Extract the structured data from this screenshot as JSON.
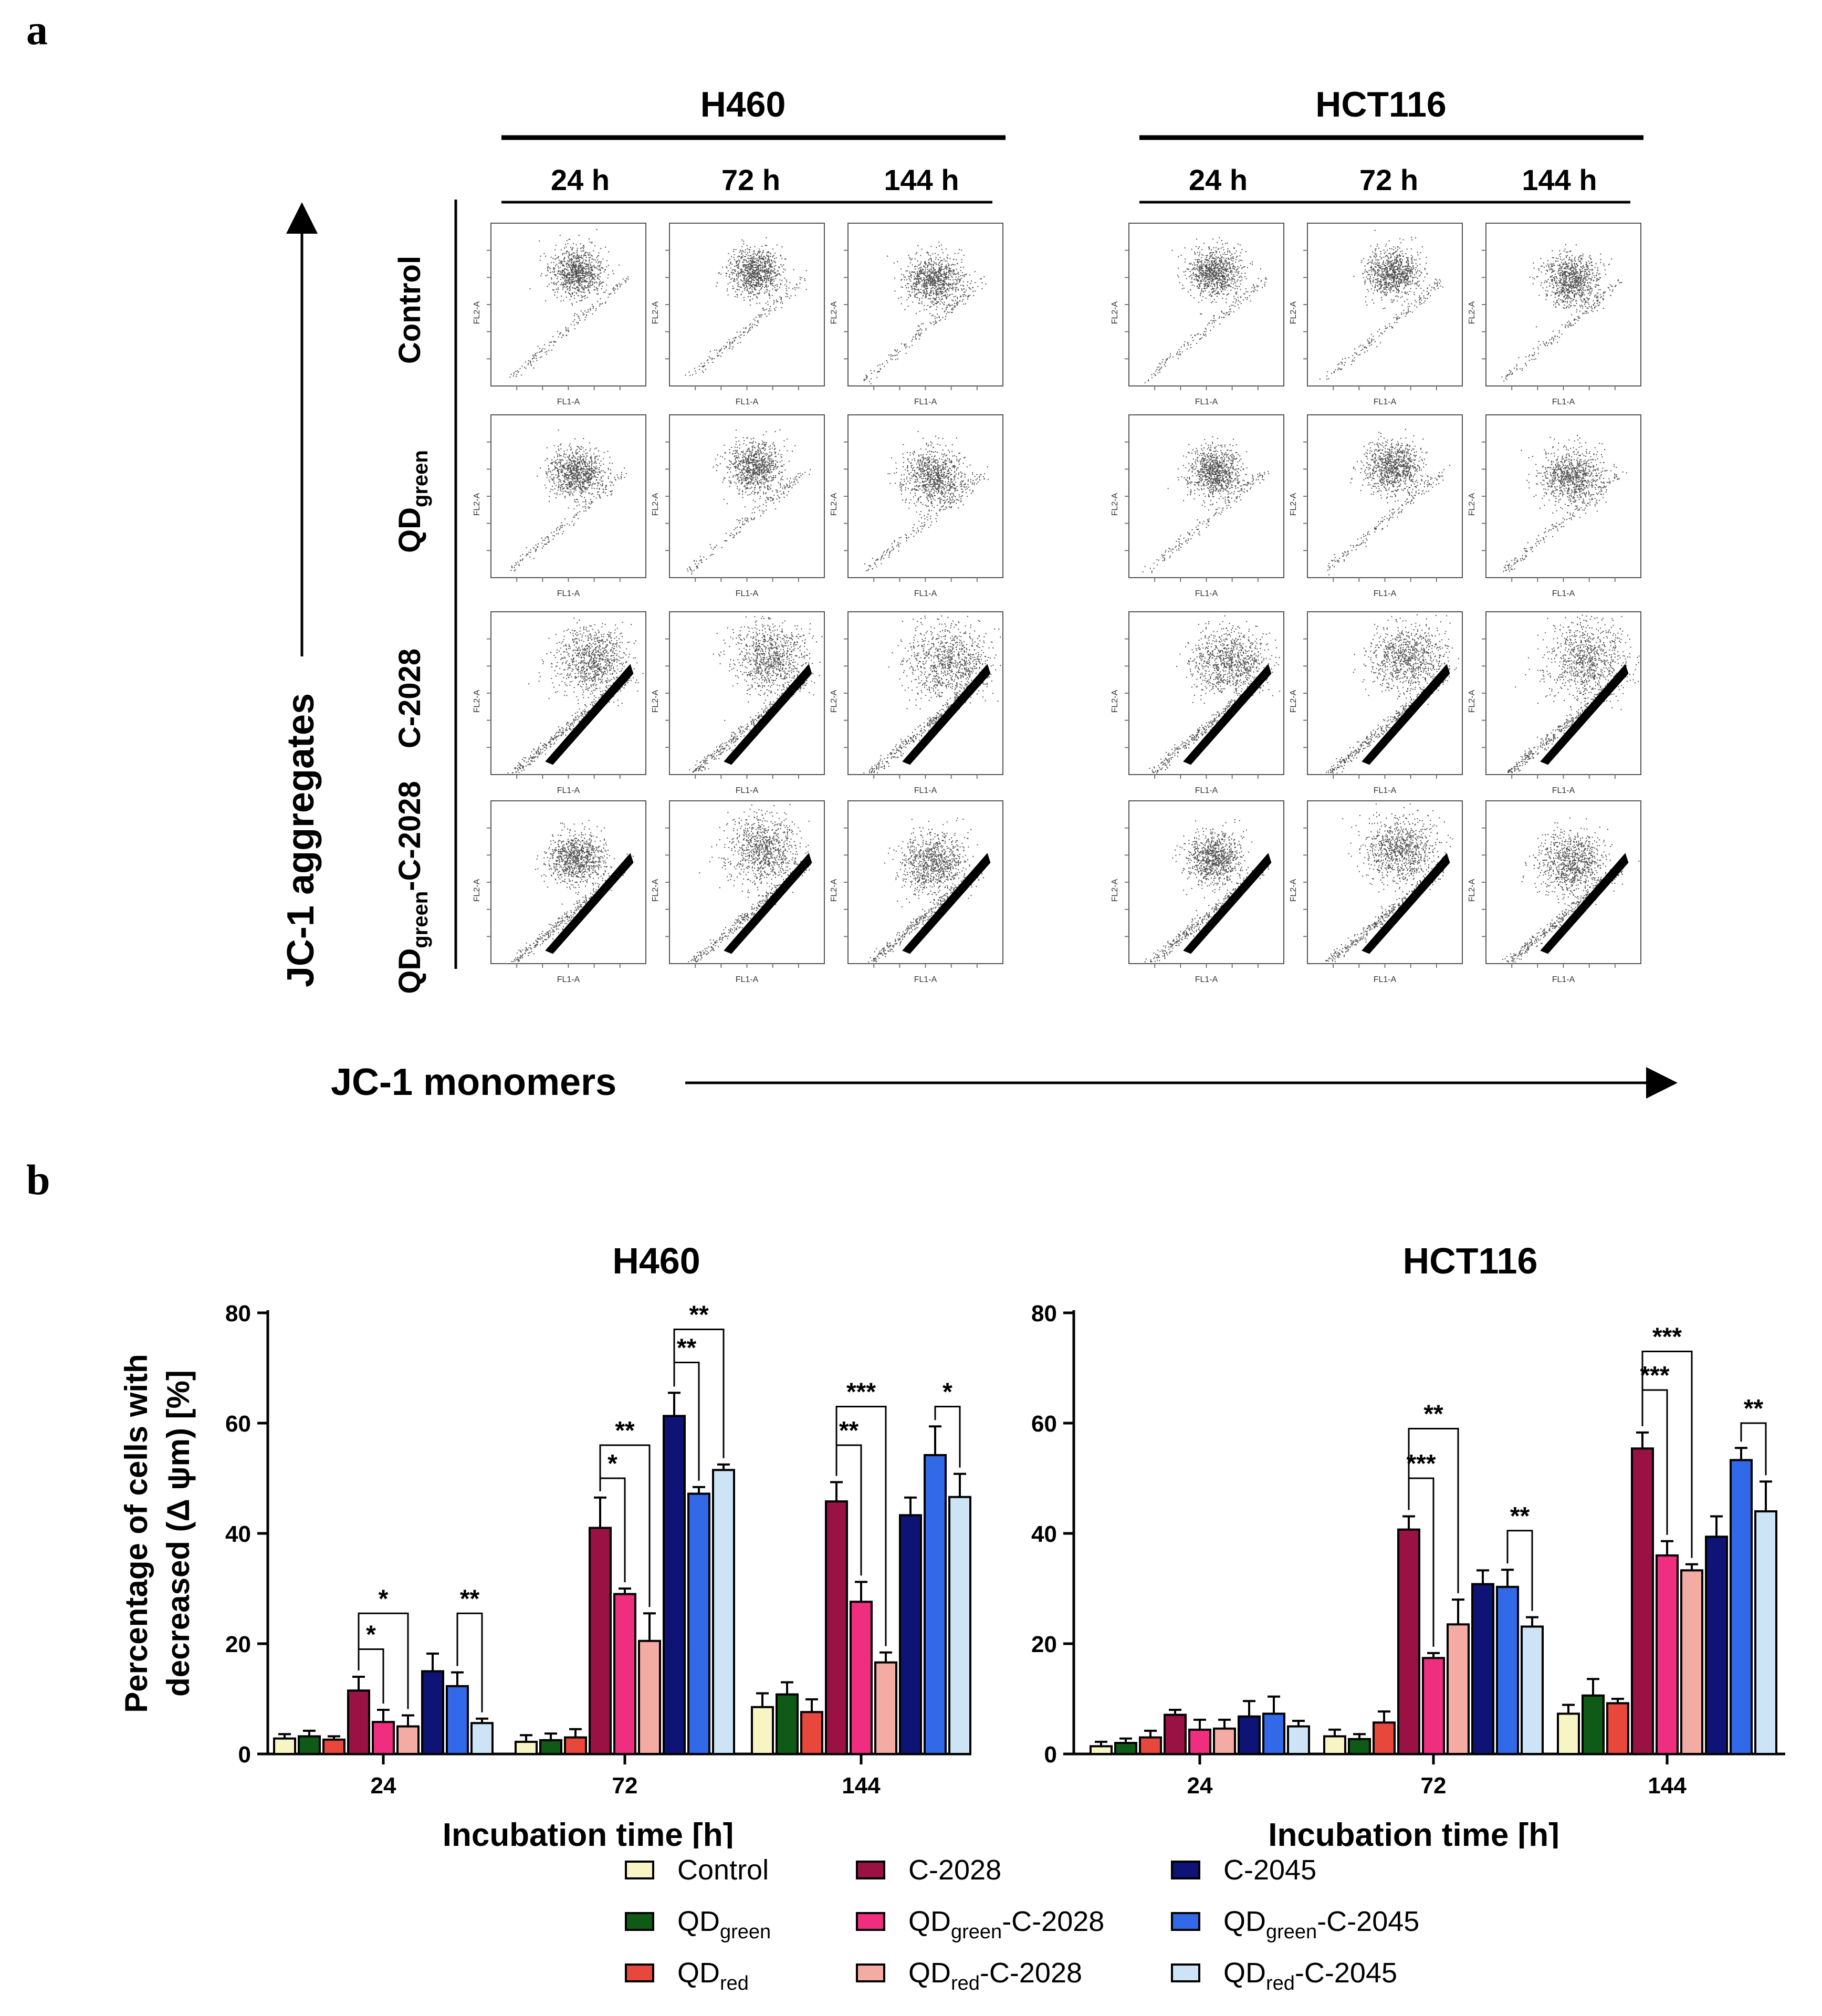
{
  "panel_a": {
    "label": "a",
    "cell_lines": [
      {
        "name": "H460",
        "times": [
          "24 h",
          "72 h",
          "144 h"
        ]
      },
      {
        "name": "HCT116",
        "times": [
          "24 h",
          "72 h",
          "144 h"
        ]
      }
    ],
    "row_labels": [
      {
        "main": "Control",
        "sub": "",
        "tail": ""
      },
      {
        "main": "QD",
        "sub": "green",
        "tail": ""
      },
      {
        "main": "C-2028",
        "sub": "",
        "tail": ""
      },
      {
        "main": "QD",
        "sub": "green",
        "tail": "-C-2028"
      }
    ],
    "y_axis_label": "JC-1 aggregates",
    "x_axis_label": "JC-1 monomers",
    "plot_x_label": "FL1-A",
    "plot_y_label": "FL2-A",
    "density_hint": [
      [
        [
          0.55,
          0.3,
          1.0
        ],
        [
          0.55,
          0.3,
          1.0
        ],
        [
          0.55,
          0.35,
          1.1
        ]
      ],
      [
        [
          0.55,
          0.35,
          1.0
        ],
        [
          0.55,
          0.32,
          1.1
        ],
        [
          0.55,
          0.38,
          1.2
        ]
      ],
      [
        [
          0.65,
          0.3,
          1.4
        ],
        [
          0.65,
          0.28,
          1.5
        ],
        [
          0.65,
          0.3,
          1.6
        ]
      ],
      [
        [
          0.55,
          0.35,
          1.1
        ],
        [
          0.6,
          0.3,
          1.4
        ],
        [
          0.55,
          0.38,
          1.3
        ]
      ]
    ]
  },
  "panel_b": {
    "label": "b",
    "legend": [
      {
        "name": "Control",
        "sub": "",
        "tail": "",
        "color": "#F8F5C4"
      },
      {
        "name": "QD",
        "sub": "green",
        "tail": "",
        "color": "#0F5A16"
      },
      {
        "name": "QD",
        "sub": "red",
        "tail": "",
        "color": "#E8473C"
      },
      {
        "name": "C-2028",
        "sub": "",
        "tail": "",
        "color": "#9A1243"
      },
      {
        "name": "QD",
        "sub": "green",
        "tail": "-C-2028",
        "color": "#EF2E80"
      },
      {
        "name": "QD",
        "sub": "red",
        "tail": "-C-2028",
        "color": "#F4ABA4"
      },
      {
        "name": "C-2045",
        "sub": "",
        "tail": "",
        "color": "#0E1476"
      },
      {
        "name": "QD",
        "sub": "green",
        "tail": "-C-2045",
        "color": "#3269E8"
      },
      {
        "name": "QD",
        "sub": "red",
        "tail": "-C-2045",
        "color": "#CDE3F6"
      }
    ]
  },
  "chart_data": [
    {
      "type": "bar",
      "title": "H460",
      "xlabel": "Incubation time [h]",
      "ylabel": "Percentage of cells with decreased (Δ ψm) [%]",
      "ylim": [
        0,
        80
      ],
      "yticks": [
        0,
        20,
        40,
        60,
        80
      ],
      "categories": [
        "24",
        "72",
        "144"
      ],
      "series": [
        {
          "name": "Control",
          "values": [
            2.8,
            2.2,
            8.5
          ],
          "errors": [
            0.8,
            1.2,
            2.5
          ]
        },
        {
          "name": "QDgreen",
          "values": [
            3.2,
            2.5,
            10.8
          ],
          "errors": [
            1.0,
            1.2,
            2.2
          ]
        },
        {
          "name": "QDred",
          "values": [
            2.6,
            3.0,
            7.6
          ],
          "errors": [
            0.6,
            1.5,
            2.3
          ]
        },
        {
          "name": "C-2028",
          "values": [
            11.5,
            41.0,
            45.8
          ],
          "errors": [
            2.5,
            5.5,
            3.5
          ]
        },
        {
          "name": "QDgreen-C-2028",
          "values": [
            5.8,
            29.0,
            27.6
          ],
          "errors": [
            2.2,
            1.0,
            3.6
          ]
        },
        {
          "name": "QDred-C-2028",
          "values": [
            5.0,
            20.5,
            16.6
          ],
          "errors": [
            2.0,
            5.0,
            1.8
          ]
        },
        {
          "name": "C-2045",
          "values": [
            15.0,
            61.3,
            43.3
          ],
          "errors": [
            3.2,
            4.2,
            3.2
          ]
        },
        {
          "name": "QDgreen-C-2045",
          "values": [
            12.3,
            47.2,
            54.2
          ],
          "errors": [
            2.5,
            1.2,
            5.2
          ]
        },
        {
          "name": "QDred-C-2045",
          "values": [
            5.6,
            51.5,
            46.6
          ],
          "errors": [
            0.8,
            1.0,
            4.2
          ]
        }
      ],
      "annotations": [
        {
          "cat": 0,
          "from": 3,
          "to": 4,
          "stars": "*",
          "level": 19
        },
        {
          "cat": 0,
          "from": 3,
          "to": 5,
          "stars": "*",
          "level": 25.5
        },
        {
          "cat": 0,
          "from": 7,
          "to": 8,
          "stars": "**",
          "level": 25.5
        },
        {
          "cat": 1,
          "from": 3,
          "to": 4,
          "stars": "*",
          "level": 50
        },
        {
          "cat": 1,
          "from": 3,
          "to": 5,
          "stars": "**",
          "level": 56
        },
        {
          "cat": 1,
          "from": 6,
          "to": 7,
          "stars": "**",
          "level": 71
        },
        {
          "cat": 1,
          "from": 6,
          "to": 8,
          "stars": "**",
          "level": 77
        },
        {
          "cat": 2,
          "from": 3,
          "to": 4,
          "stars": "**",
          "level": 56
        },
        {
          "cat": 2,
          "from": 3,
          "to": 5,
          "stars": "***",
          "level": 63
        },
        {
          "cat": 2,
          "from": 7,
          "to": 8,
          "stars": "*",
          "level": 63
        }
      ]
    },
    {
      "type": "bar",
      "title": "HCT116",
      "xlabel": "Incubation time [h]",
      "ylabel": "",
      "ylim": [
        0,
        80
      ],
      "yticks": [
        0,
        20,
        40,
        60,
        80
      ],
      "categories": [
        "24",
        "72",
        "144"
      ],
      "series": [
        {
          "name": "Control",
          "values": [
            1.4,
            3.2,
            7.3
          ],
          "errors": [
            0.8,
            1.2,
            1.6
          ]
        },
        {
          "name": "QDgreen",
          "values": [
            2.0,
            2.7,
            10.6
          ],
          "errors": [
            0.8,
            0.9,
            3.0
          ]
        },
        {
          "name": "QDred",
          "values": [
            3.0,
            5.7,
            9.2
          ],
          "errors": [
            1.2,
            2.0,
            0.8
          ]
        },
        {
          "name": "C-2028",
          "values": [
            7.1,
            40.7,
            55.4
          ],
          "errors": [
            0.9,
            2.4,
            2.9
          ]
        },
        {
          "name": "QDgreen-C-2028",
          "values": [
            4.4,
            17.4,
            36.0
          ],
          "errors": [
            1.8,
            0.9,
            2.6
          ]
        },
        {
          "name": "QDred-C-2028",
          "values": [
            4.6,
            23.5,
            33.3
          ],
          "errors": [
            1.6,
            4.5,
            1.1
          ]
        },
        {
          "name": "C-2045",
          "values": [
            6.8,
            30.8,
            39.4
          ],
          "errors": [
            2.8,
            2.5,
            3.7
          ]
        },
        {
          "name": "QDgreen-C-2045",
          "values": [
            7.3,
            30.3,
            53.3
          ],
          "errors": [
            3.1,
            3.1,
            2.2
          ]
        },
        {
          "name": "QDred-C-2045",
          "values": [
            5.0,
            23.1,
            44.0
          ],
          "errors": [
            1.0,
            1.7,
            5.4
          ]
        }
      ],
      "annotations": [
        {
          "cat": 1,
          "from": 3,
          "to": 4,
          "stars": "***",
          "level": 50
        },
        {
          "cat": 1,
          "from": 3,
          "to": 5,
          "stars": "**",
          "level": 59
        },
        {
          "cat": 1,
          "from": 7,
          "to": 8,
          "stars": "**",
          "level": 40.5
        },
        {
          "cat": 2,
          "from": 3,
          "to": 4,
          "stars": "***",
          "level": 66
        },
        {
          "cat": 2,
          "from": 3,
          "to": 5,
          "stars": "***",
          "level": 73
        },
        {
          "cat": 2,
          "from": 7,
          "to": 8,
          "stars": "**",
          "level": 60
        }
      ]
    }
  ]
}
